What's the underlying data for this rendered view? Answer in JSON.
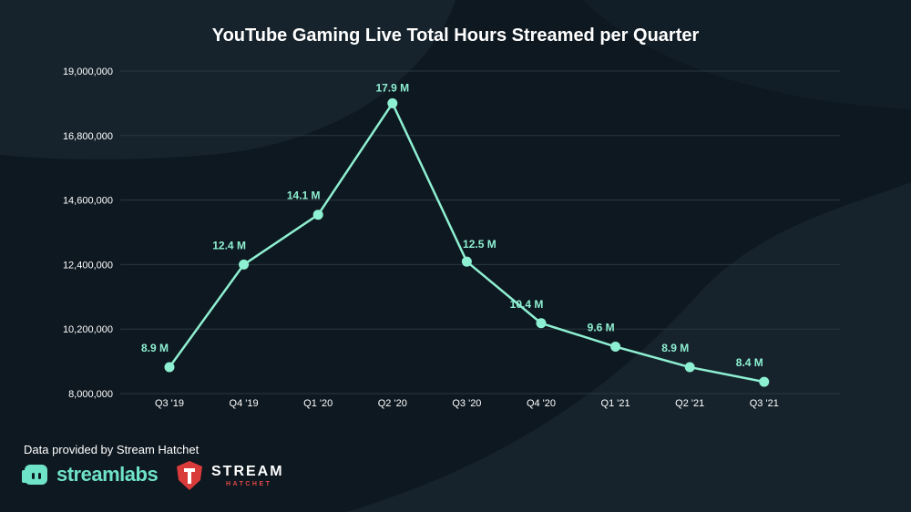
{
  "chart_data": {
    "type": "line",
    "title": "YouTube Gaming Live Total Hours Streamed per Quarter",
    "categories": [
      "Q3 '19",
      "Q4 '19",
      "Q1 '20",
      "Q2 '20",
      "Q3 '20",
      "Q4 '20",
      "Q1 '21",
      "Q2 '21",
      "Q3 '21"
    ],
    "values": [
      8900000,
      12400000,
      14100000,
      17900000,
      12500000,
      10400000,
      9600000,
      8900000,
      8400000
    ],
    "data_labels": [
      "8.9 M",
      "12.4 M",
      "14.1 M",
      "17.9 M",
      "12.5 M",
      "10.4 M",
      "9.6 M",
      "8.9 M",
      "8.4 M"
    ],
    "y_ticks": [
      8000000,
      10200000,
      12400000,
      14600000,
      16800000,
      19000000
    ],
    "y_tick_labels": [
      "8,000,000",
      "10,200,000",
      "12,400,000",
      "14,600,000",
      "16,800,000",
      "19,000,000"
    ],
    "ylim": [
      8000000,
      19000000
    ],
    "grid": true,
    "line_color": "#8ef0d2"
  },
  "footer": {
    "source": "Data provided by Stream Hatchet",
    "streamlabs_logo": "streamlabs",
    "hatchet_logo_main": "STREAM",
    "hatchet_logo_sub": "HATCHET"
  },
  "colors": {
    "background": "#0e1820",
    "accent": "#6fe3c7",
    "hatchet_red": "#d93a3a"
  }
}
